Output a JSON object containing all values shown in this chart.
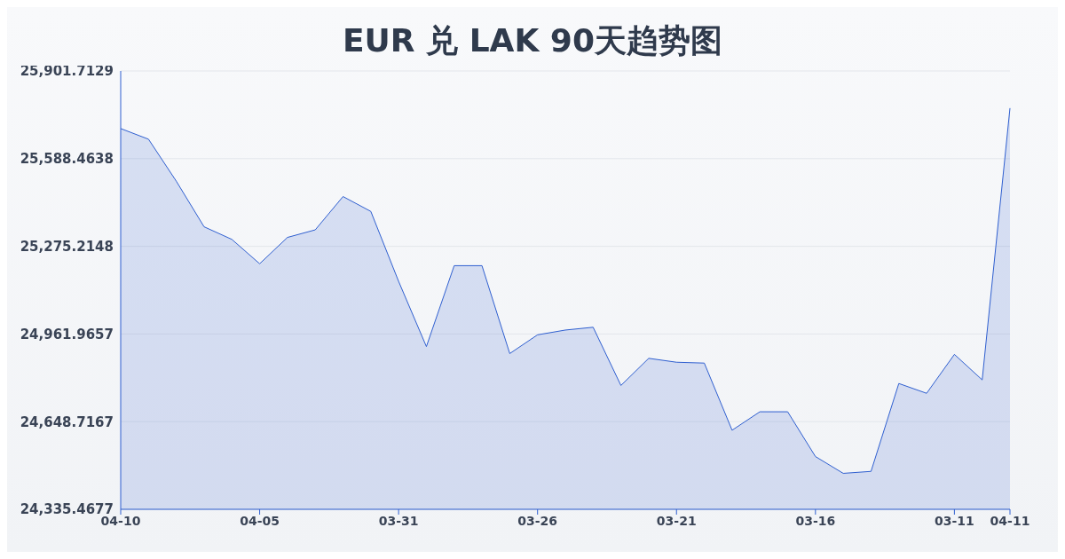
{
  "chart_data": {
    "type": "area",
    "title": "EUR 兑 LAK 90天趋势图",
    "categories": [
      "04-10",
      null,
      null,
      null,
      null,
      "04-05",
      null,
      null,
      null,
      null,
      "03-31",
      null,
      null,
      null,
      null,
      "03-26",
      null,
      null,
      null,
      null,
      "03-21",
      null,
      null,
      null,
      null,
      "03-16",
      null,
      null,
      null,
      null,
      "03-11",
      null,
      "04-11"
    ],
    "series": [
      {
        "color": "#2f5fd0",
        "values": [
          25696,
          25658,
          25508,
          25345,
          25300,
          25213,
          25307,
          25334,
          25453,
          25400,
          25150,
          24917,
          25206,
          25206,
          24892,
          24959,
          24976,
          24986,
          24778,
          24875,
          24861,
          24858,
          24618,
          24684,
          24684,
          24524,
          24464,
          24471,
          24785,
          24750,
          24889,
          24798,
          25769
        ]
      }
    ],
    "ylim": [
      24335.4677,
      25901.7129
    ],
    "yticks": [
      {
        "value": 24335.4677,
        "label": "24,335.4677"
      },
      {
        "value": 24648.7167,
        "label": "24,648.7167"
      },
      {
        "value": 24961.9657,
        "label": "24,961.9657"
      },
      {
        "value": 25275.2148,
        "label": "25,275.2148"
      },
      {
        "value": 25588.4638,
        "label": "25,588.4638"
      },
      {
        "value": 25901.7129,
        "label": "25,901.7129"
      }
    ],
    "grid": "y",
    "marker": "none"
  }
}
